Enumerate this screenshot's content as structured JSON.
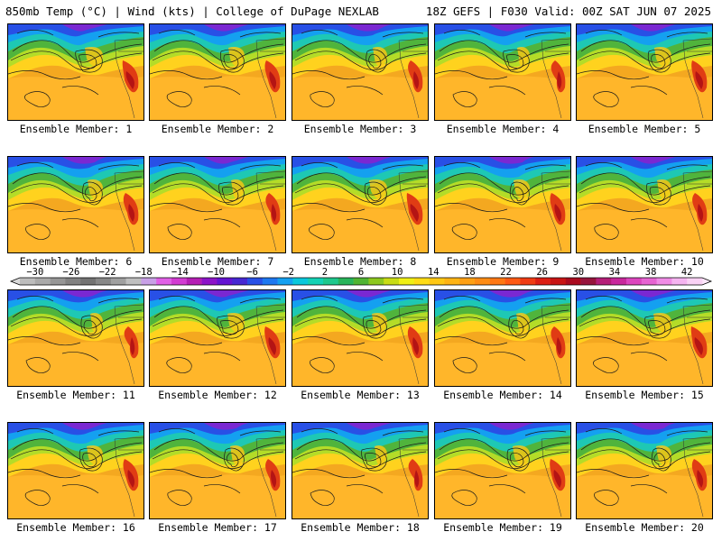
{
  "header": {
    "left": "850mb Temp (°C) | Wind (kts) | College of DuPage NEXLAB",
    "right": "18Z GEFS | F030 Valid: 00Z SAT JUN 07 2025"
  },
  "members": [
    {
      "caption": "Ensemble Member: 1"
    },
    {
      "caption": "Ensemble Member: 2"
    },
    {
      "caption": "Ensemble Member: 3"
    },
    {
      "caption": "Ensemble Member: 4"
    },
    {
      "caption": "Ensemble Member: 5"
    },
    {
      "caption": "Ensemble Member: 6"
    },
    {
      "caption": "Ensemble Member: 7"
    },
    {
      "caption": "Ensemble Member: 8"
    },
    {
      "caption": "Ensemble Member: 9"
    },
    {
      "caption": "Ensemble Member: 10"
    },
    {
      "caption": "Ensemble Member: 11"
    },
    {
      "caption": "Ensemble Member: 12"
    },
    {
      "caption": "Ensemble Member: 13"
    },
    {
      "caption": "Ensemble Member: 14"
    },
    {
      "caption": "Ensemble Member: 15"
    },
    {
      "caption": "Ensemble Member: 16"
    },
    {
      "caption": "Ensemble Member: 17"
    },
    {
      "caption": "Ensemble Member: 18"
    },
    {
      "caption": "Ensemble Member: 19"
    },
    {
      "caption": "Ensemble Member: 20"
    }
  ],
  "colorbar": {
    "labels": [
      "−30",
      "−26",
      "−22",
      "−18",
      "−14",
      "−10",
      "−6",
      "−2",
      "2",
      "6",
      "10",
      "14",
      "18",
      "22",
      "26",
      "30",
      "34",
      "38",
      "42"
    ],
    "colors": [
      "#bdbdbd",
      "#aaaaaa",
      "#969696",
      "#828282",
      "#737373",
      "#888888",
      "#a0a0a0",
      "#bfbfbf",
      "#c8a0e6",
      "#e060e6",
      "#d23cd2",
      "#b41eb4",
      "#8c14c8",
      "#6414d2",
      "#4628d2",
      "#2850e6",
      "#1e78f0",
      "#14a0f0",
      "#0ac8dc",
      "#14d2b4",
      "#1ec88c",
      "#28b45a",
      "#50b432",
      "#8cc81e",
      "#c8dc14",
      "#f0f014",
      "#ffdc14",
      "#ffc814",
      "#ffb414",
      "#ffa014",
      "#ff8c14",
      "#ff7814",
      "#ff5a14",
      "#f03c14",
      "#dc1e14",
      "#c81414",
      "#aa0a1e",
      "#96143c",
      "#b41e78",
      "#c8289c",
      "#dc46be",
      "#e664d2",
      "#f08ce6",
      "#f5b4f0",
      "#fad2f5"
    ]
  }
}
